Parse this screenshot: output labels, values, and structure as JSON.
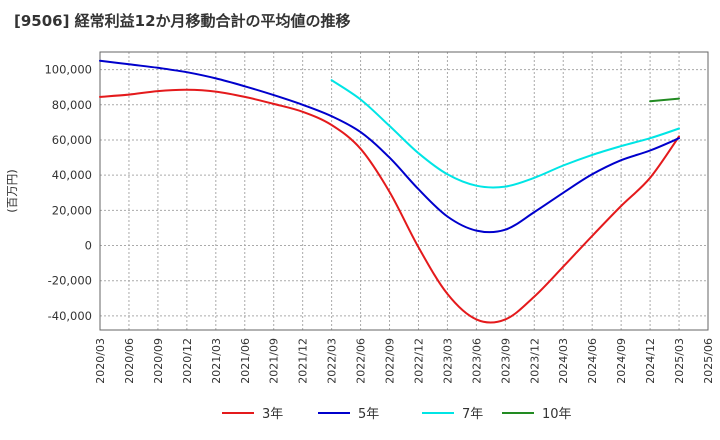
{
  "chart_data": {
    "type": "line",
    "title": "[9506]  経常利益12か月移動合計の平均値の推移",
    "ylabel": "(百万円)",
    "xlabel": "",
    "ylim": [
      -48000,
      110000
    ],
    "yticks": [
      100000,
      80000,
      60000,
      40000,
      20000,
      0,
      -20000,
      -40000
    ],
    "ytick_labels": [
      "100,000",
      "80,000",
      "60,000",
      "40,000",
      "20,000",
      "0",
      "-20,000",
      "-40,000"
    ],
    "xticks": [
      "2020/03",
      "2020/06",
      "2020/09",
      "2020/12",
      "2021/03",
      "2021/06",
      "2021/09",
      "2021/12",
      "2022/03",
      "2022/06",
      "2022/09",
      "2022/12",
      "2023/03",
      "2023/06",
      "2023/09",
      "2023/12",
      "2024/03",
      "2024/06",
      "2024/09",
      "2024/12",
      "2025/03",
      "2025/06"
    ],
    "grid": true,
    "legend_position": "bottom",
    "series": [
      {
        "name": "3年",
        "color": "#e41a1c",
        "x": [
          "2020/03",
          "2020/06",
          "2020/09",
          "2020/12",
          "2021/03",
          "2021/06",
          "2021/09",
          "2021/12",
          "2022/03",
          "2022/06",
          "2022/09",
          "2022/12",
          "2023/03",
          "2023/06",
          "2023/09",
          "2023/12",
          "2024/03",
          "2024/06",
          "2024/09",
          "2024/12",
          "2025/03"
        ],
        "values": [
          84500,
          85800,
          87800,
          88500,
          87500,
          84500,
          80500,
          76000,
          68500,
          55000,
          30500,
          -1000,
          -27500,
          -42000,
          -42000,
          -29000,
          -12000,
          5500,
          22500,
          38500,
          62000
        ]
      },
      {
        "name": "5年",
        "color": "#0000cc",
        "x": [
          "2020/03",
          "2020/06",
          "2020/09",
          "2020/12",
          "2021/03",
          "2021/06",
          "2021/09",
          "2021/12",
          "2022/03",
          "2022/06",
          "2022/09",
          "2022/12",
          "2023/03",
          "2023/06",
          "2023/09",
          "2023/12",
          "2024/03",
          "2024/06",
          "2024/09",
          "2024/12",
          "2025/03"
        ],
        "values": [
          105000,
          103000,
          101000,
          98500,
          95000,
          90500,
          85500,
          80000,
          73500,
          64500,
          50000,
          32000,
          16500,
          8500,
          9000,
          19000,
          30000,
          40500,
          48500,
          54000,
          61000
        ]
      },
      {
        "name": "7年",
        "color": "#00e5e5",
        "x": [
          "2022/03",
          "2022/06",
          "2022/09",
          "2022/12",
          "2023/03",
          "2023/06",
          "2023/09",
          "2023/12",
          "2024/03",
          "2024/06",
          "2024/09",
          "2024/12",
          "2025/03"
        ],
        "values": [
          94000,
          83000,
          68000,
          52500,
          40500,
          34000,
          33500,
          38500,
          45500,
          51500,
          56500,
          61000,
          66500
        ]
      },
      {
        "name": "10年",
        "color": "#228b22",
        "x": [
          "2024/12",
          "2025/03"
        ],
        "values": [
          82000,
          83500
        ]
      }
    ]
  }
}
